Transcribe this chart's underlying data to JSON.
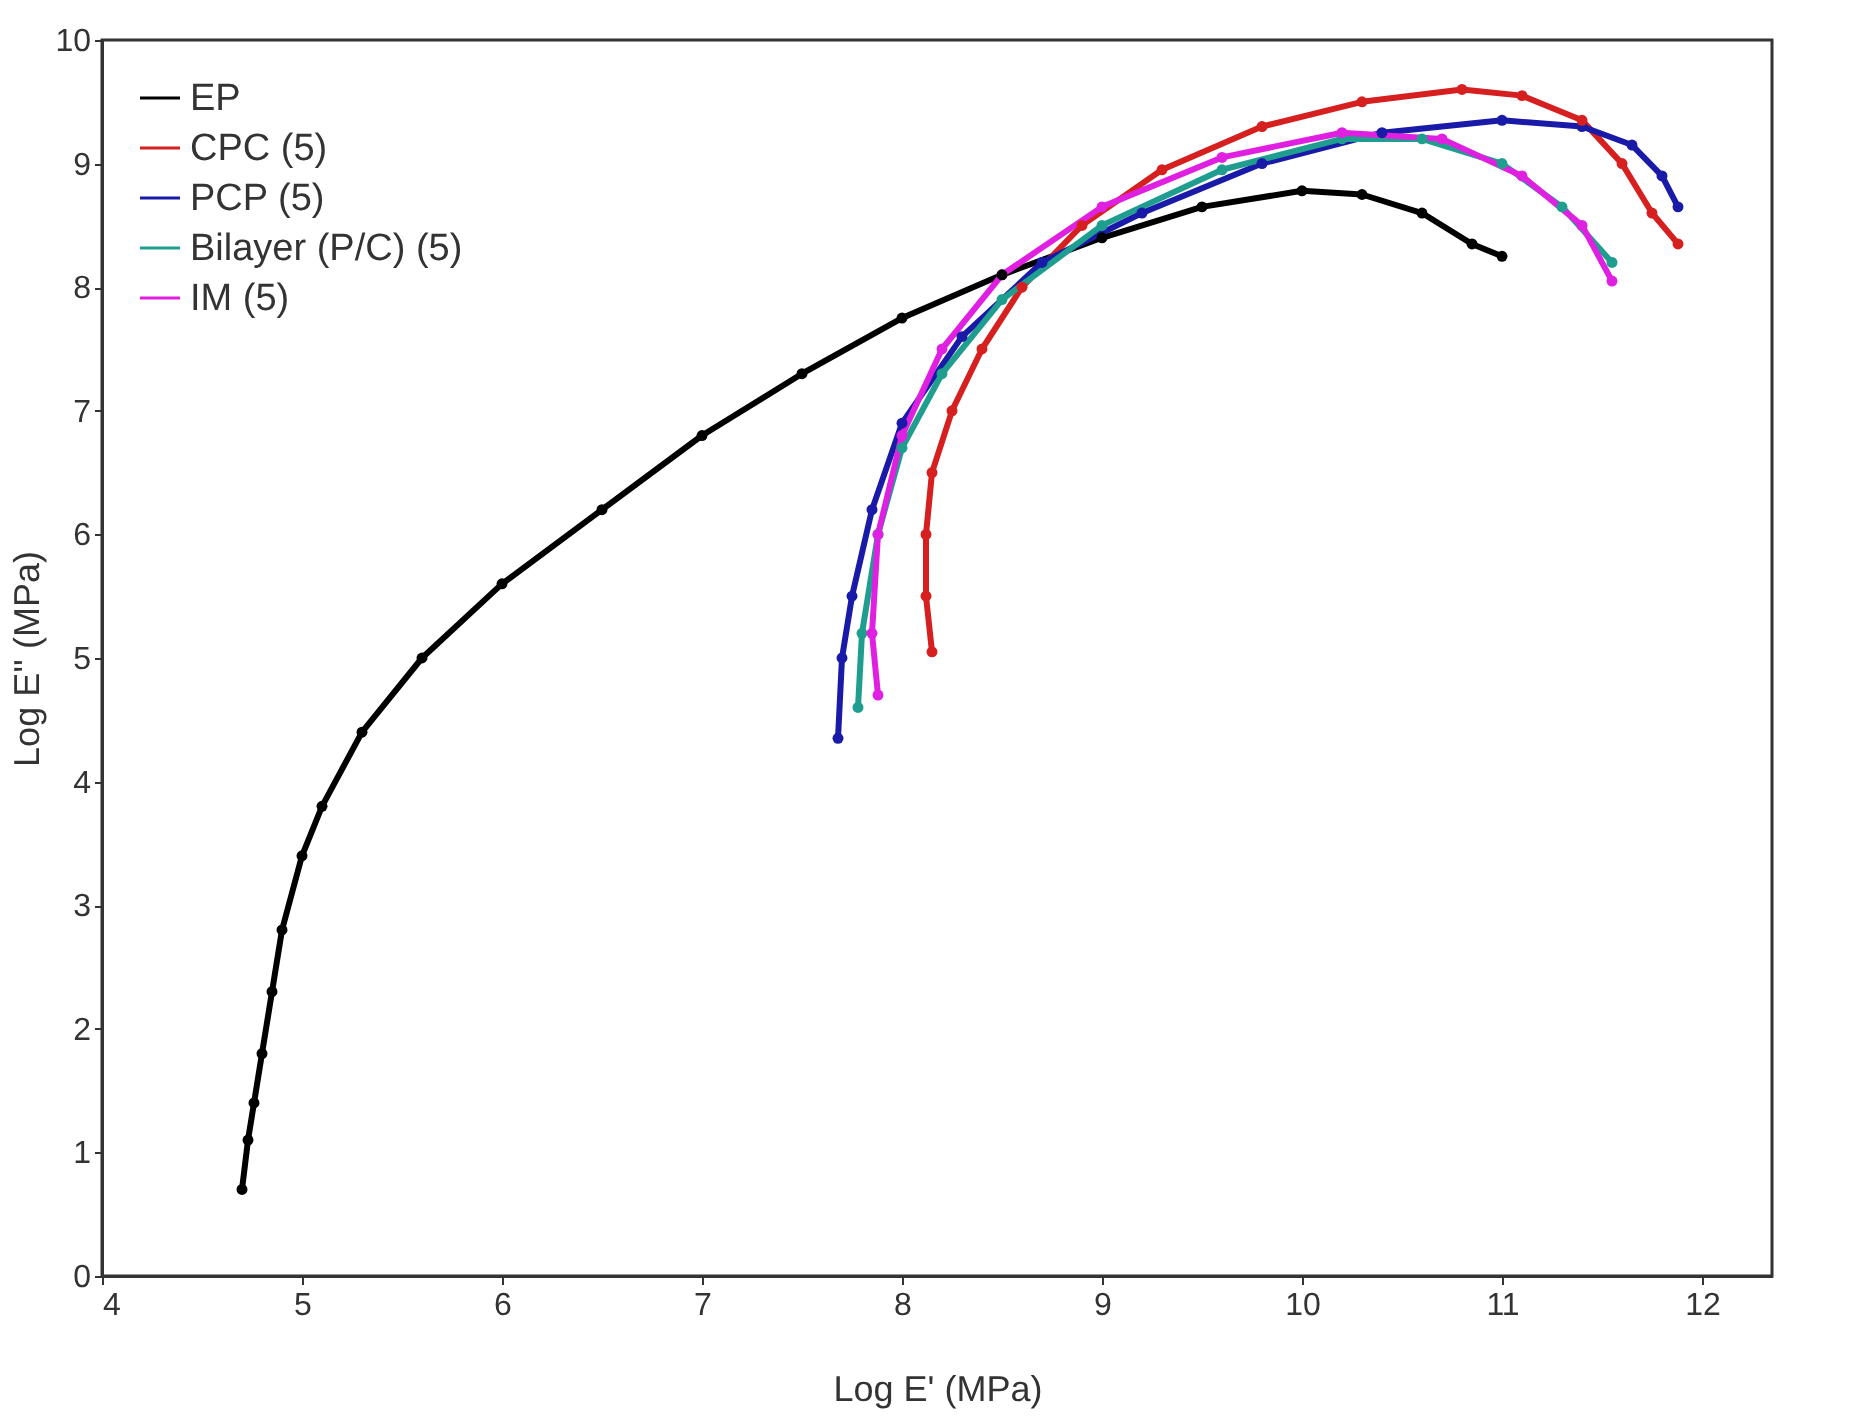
{
  "chart_data": {
    "type": "line",
    "xlabel": "Log E' (MPa)",
    "ylabel": "Log E'' (MPa)",
    "xlim": [
      4,
      12.35
    ],
    "ylim": [
      0,
      10
    ],
    "xticks": [
      4,
      5,
      6,
      7,
      8,
      9,
      10,
      11,
      12
    ],
    "yticks": [
      0,
      1,
      2,
      3,
      4,
      5,
      6,
      7,
      8,
      9,
      10
    ],
    "grid": false,
    "legend": "top left",
    "marker": "circle",
    "line_style": "solid",
    "series": [
      {
        "name": "EP",
        "color": "#000000",
        "x": [
          4.7,
          4.73,
          4.76,
          4.8,
          4.85,
          4.9,
          5.0,
          5.1,
          5.3,
          5.6,
          6.0,
          6.5,
          7.0,
          7.5,
          8.0,
          8.5,
          9.0,
          9.5,
          10.0,
          10.3,
          10.6,
          10.85,
          11.0
        ],
        "values": [
          0.7,
          1.1,
          1.4,
          1.8,
          2.3,
          2.8,
          3.4,
          3.8,
          4.4,
          5.0,
          5.6,
          6.2,
          6.8,
          7.3,
          7.75,
          8.1,
          8.4,
          8.65,
          8.78,
          8.75,
          8.6,
          8.35,
          8.25
        ]
      },
      {
        "name": "CPC (5)",
        "color": "#d62020",
        "x": [
          8.15,
          8.12,
          8.12,
          8.15,
          8.25,
          8.4,
          8.6,
          8.9,
          9.3,
          9.8,
          10.3,
          10.8,
          11.1,
          11.4,
          11.6,
          11.75,
          11.88
        ],
        "values": [
          5.05,
          5.5,
          6.0,
          6.5,
          7.0,
          7.5,
          8.0,
          8.5,
          8.95,
          9.3,
          9.5,
          9.6,
          9.55,
          9.35,
          9.0,
          8.6,
          8.35
        ]
      },
      {
        "name": "PCP (5)",
        "color": "#1a1aa8",
        "x": [
          7.68,
          7.7,
          7.75,
          7.85,
          8.0,
          8.3,
          8.7,
          9.2,
          9.8,
          10.4,
          11.0,
          11.4,
          11.65,
          11.8,
          11.88
        ],
        "values": [
          4.35,
          5.0,
          5.5,
          6.2,
          6.9,
          7.6,
          8.2,
          8.6,
          9.0,
          9.25,
          9.35,
          9.3,
          9.15,
          8.9,
          8.65
        ]
      },
      {
        "name": "Bilayer (P/C) (5)",
        "color": "#1f9e8f",
        "x": [
          7.78,
          7.8,
          7.88,
          8.0,
          8.2,
          8.5,
          9.0,
          9.6,
          10.2,
          10.6,
          11.0,
          11.3,
          11.55
        ],
        "values": [
          4.6,
          5.2,
          6.0,
          6.7,
          7.3,
          7.9,
          8.5,
          8.95,
          9.2,
          9.2,
          9.0,
          8.65,
          8.2
        ]
      },
      {
        "name": "IM (5)",
        "color": "#e020e0",
        "x": [
          7.88,
          7.85,
          7.88,
          8.0,
          8.2,
          8.5,
          9.0,
          9.6,
          10.2,
          10.7,
          11.1,
          11.4,
          11.55
        ],
        "values": [
          4.7,
          5.2,
          6.0,
          6.8,
          7.5,
          8.1,
          8.65,
          9.05,
          9.25,
          9.2,
          8.9,
          8.5,
          8.05
        ]
      }
    ]
  }
}
